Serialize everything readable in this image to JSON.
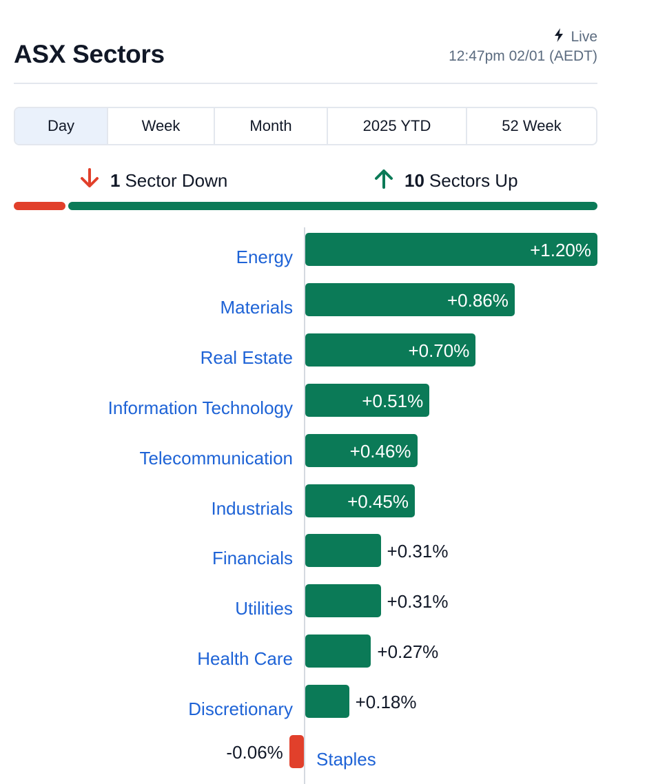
{
  "header": {
    "title": "ASX Sectors",
    "live_label": "Live",
    "timestamp": "12:47pm 02/01 (AEDT)"
  },
  "tabs": [
    {
      "label": "Day",
      "active": true
    },
    {
      "label": "Week",
      "active": false
    },
    {
      "label": "Month",
      "active": false
    },
    {
      "label": "2025 YTD",
      "active": false
    },
    {
      "label": "52 Week",
      "active": false
    }
  ],
  "summary": {
    "down_count": "1",
    "down_text": "Sector Down",
    "up_count": "10",
    "up_text": "Sectors Up",
    "down_fraction": 0.0909,
    "up_fraction": 0.9091
  },
  "colors": {
    "up": "#0b7a57",
    "down": "#e1402b",
    "link": "#1e63d6"
  },
  "chart_data": {
    "type": "bar",
    "orientation": "horizontal",
    "categories": [
      "Energy",
      "Materials",
      "Real Estate",
      "Information Technology",
      "Telecommunication",
      "Industrials",
      "Financials",
      "Utilities",
      "Health Care",
      "Discretionary",
      "Staples"
    ],
    "values": [
      1.2,
      0.86,
      0.7,
      0.51,
      0.46,
      0.45,
      0.31,
      0.31,
      0.27,
      0.18,
      -0.06
    ],
    "value_labels": [
      "+1.20%",
      "+0.86%",
      "+0.70%",
      "+0.51%",
      "+0.46%",
      "+0.45%",
      "+0.31%",
      "+0.31%",
      "+0.27%",
      "+0.18%",
      "-0.06%"
    ],
    "unit": "%"
  }
}
